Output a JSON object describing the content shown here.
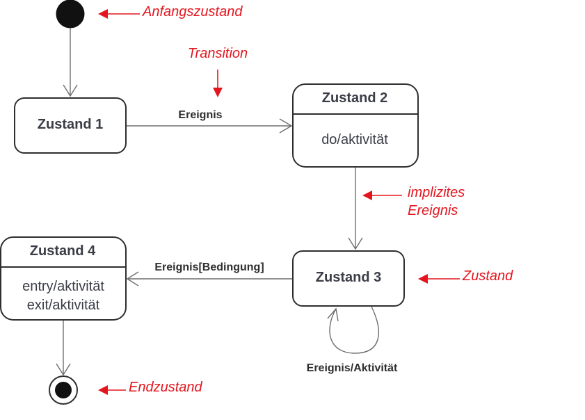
{
  "colors": {
    "annotation": "#e3161f",
    "state_border": "#2e2e2e",
    "state_text": "#3a3d46",
    "edge": "#6e6e6e",
    "node_fill": "#111111"
  },
  "states": {
    "zustand1": {
      "name": "Zustand 1"
    },
    "zustand2": {
      "name": "Zustand 2",
      "activity": "do/aktivität"
    },
    "zustand3": {
      "name": "Zustand 3"
    },
    "zustand4": {
      "name": "Zustand 4",
      "activity_entry": "entry/aktivität",
      "activity_exit": "exit/aktivität"
    }
  },
  "transitions": {
    "t1_2": "Ereignis",
    "t4_3": "Ereignis[Bedingung]",
    "self3": "Ereignis/Aktivität"
  },
  "annotations": {
    "anfangszustand": "Anfangszustand",
    "transition": "Transition",
    "implizites_line1": "implizites",
    "implizites_line2": "Ereignis",
    "zustand": "Zustand",
    "endzustand": "Endzustand"
  }
}
